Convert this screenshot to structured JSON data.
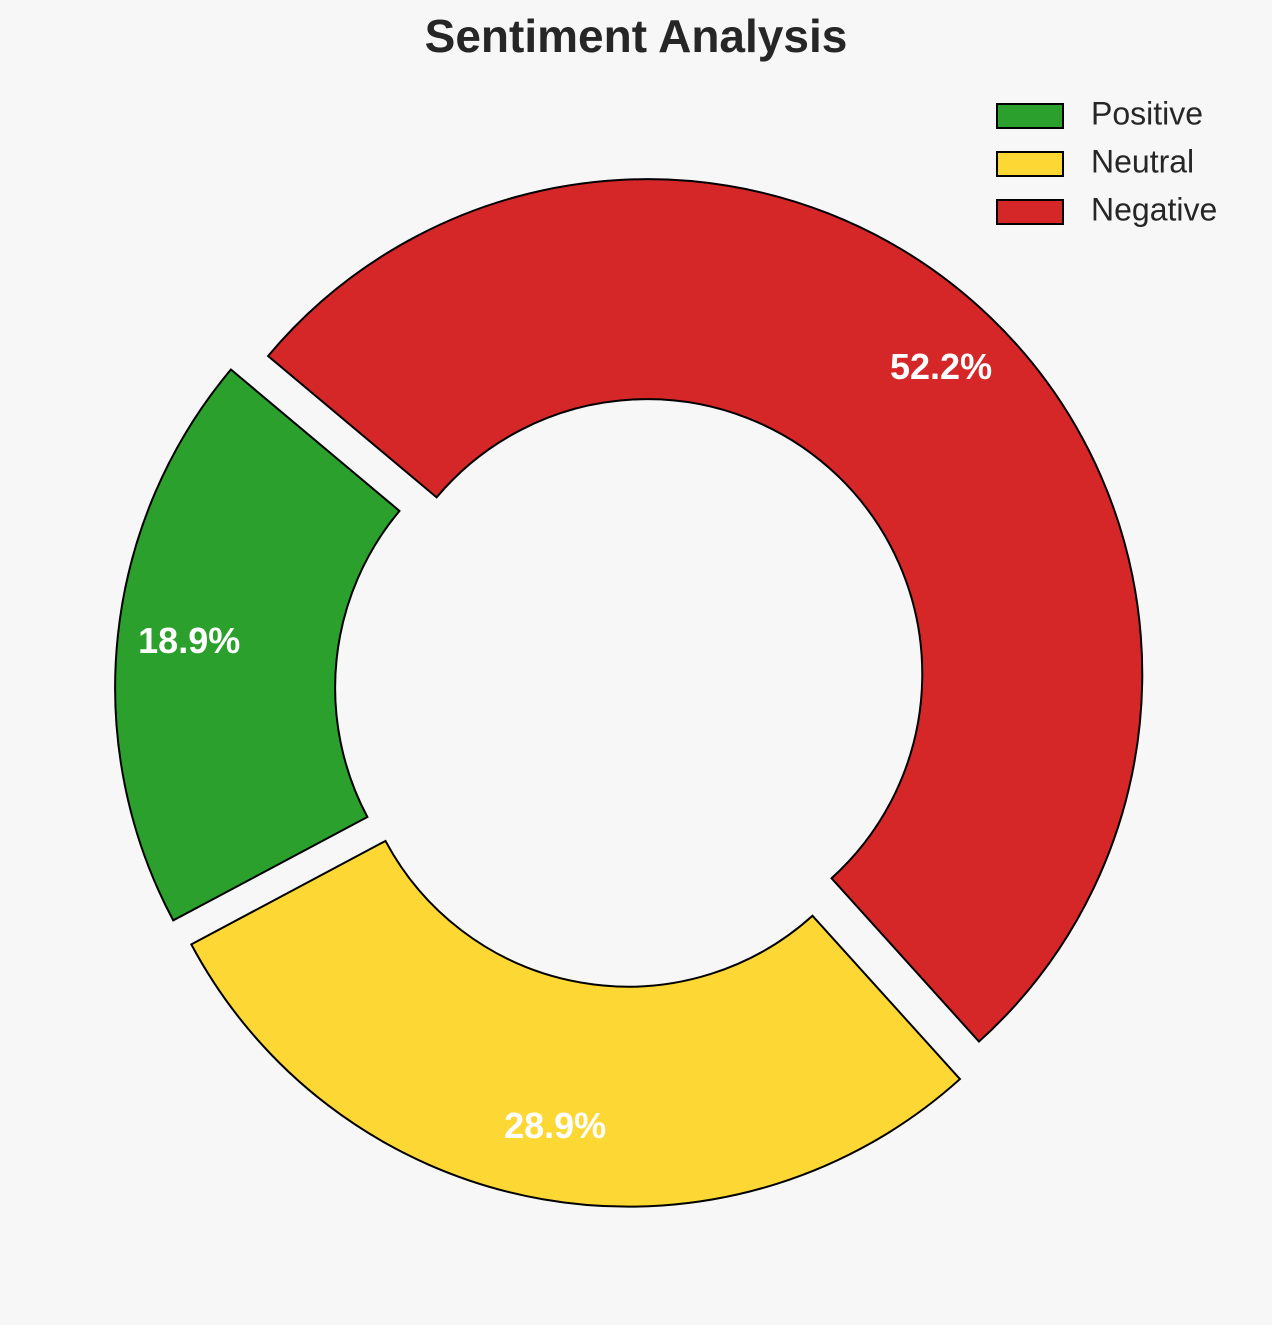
{
  "chart_data": {
    "type": "donut",
    "title": "Sentiment Analysis",
    "categories": [
      "Positive",
      "Neutral",
      "Negative"
    ],
    "values": [
      18.9,
      28.9,
      52.2
    ],
    "value_labels": [
      "18.9%",
      "28.9%",
      "52.2%"
    ],
    "colors": [
      "#2ca02c",
      "#fdd835",
      "#d62728"
    ],
    "legend": "upper right"
  }
}
